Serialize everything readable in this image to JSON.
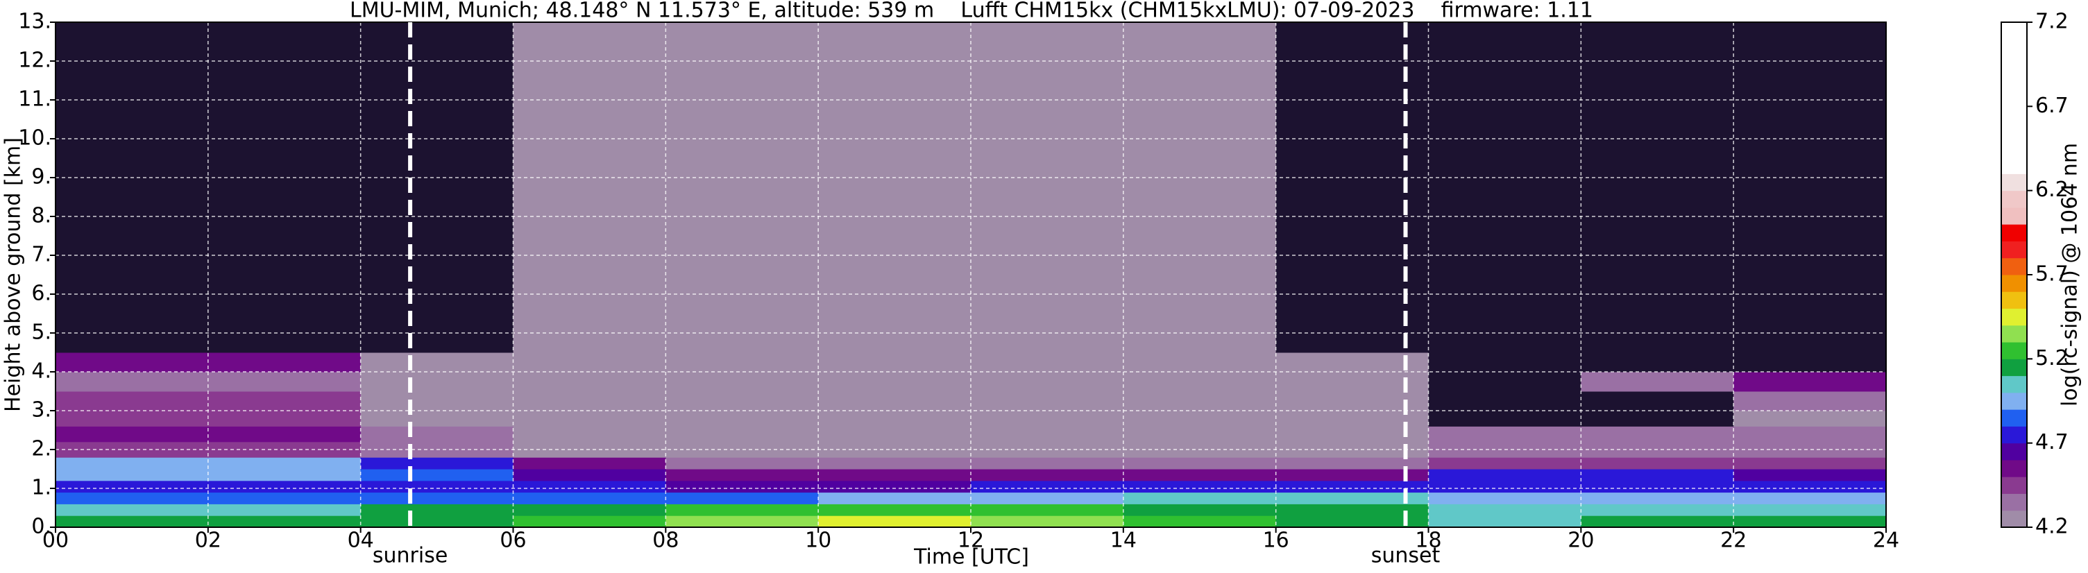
{
  "chart_data": {
    "type": "heatmap",
    "title": "LMU-MIM, Munich; 48.148° N 11.573° E, altitude: 539 m    Lufft CHM15kx (CHM15kxLMU): 07-09-2023    firmware: 1.11",
    "xlabel": "Time [UTC]",
    "ylabel": "Height above ground [km]",
    "colorbar_label": "log(rc-signal) @ 1064 nm",
    "xlim": [
      0,
      24
    ],
    "xticks": [
      {
        "value": 0,
        "label": "00"
      },
      {
        "value": 2,
        "label": "02"
      },
      {
        "value": 4,
        "label": "04"
      },
      {
        "value": 6,
        "label": "06"
      },
      {
        "value": 8,
        "label": "08"
      },
      {
        "value": 10,
        "label": "10"
      },
      {
        "value": 12,
        "label": "12"
      },
      {
        "value": 14,
        "label": "14"
      },
      {
        "value": 16,
        "label": "16"
      },
      {
        "value": 18,
        "label": "18"
      },
      {
        "value": 20,
        "label": "20"
      },
      {
        "value": 22,
        "label": "22"
      },
      {
        "value": 24,
        "label": "24"
      }
    ],
    "ylim": [
      0,
      13
    ],
    "yticks": [
      {
        "value": 0,
        "label": "0."
      },
      {
        "value": 1,
        "label": "1."
      },
      {
        "value": 2,
        "label": "2."
      },
      {
        "value": 3,
        "label": "3."
      },
      {
        "value": 4,
        "label": "4."
      },
      {
        "value": 5,
        "label": "5."
      },
      {
        "value": 6,
        "label": "6."
      },
      {
        "value": 7,
        "label": "7."
      },
      {
        "value": 8,
        "label": "8."
      },
      {
        "value": 9,
        "label": "9."
      },
      {
        "value": 10,
        "label": "10."
      },
      {
        "value": 11,
        "label": "11."
      },
      {
        "value": 12,
        "label": "12."
      },
      {
        "value": 13,
        "label": "13."
      }
    ],
    "grid": true,
    "clim": [
      4.2,
      7.2
    ],
    "cticks": [
      4.2,
      4.7,
      5.2,
      5.7,
      6.2,
      6.7,
      7.2
    ],
    "color_step": 0.1,
    "under_color": "#1c1230",
    "colors": [
      "#a08ca8",
      "#9a70a4",
      "#8a3a90",
      "#700a88",
      "#5000a0",
      "#2a18d8",
      "#2060f0",
      "#80b0f0",
      "#60c8c8",
      "#10a040",
      "#30c030",
      "#90e050",
      "#e0f030",
      "#f0c010",
      "#f09000",
      "#f06010",
      "#f02020",
      "#f00000",
      "#f0c0c0",
      "#f0c8c8",
      "#f0e0e0",
      "#ffffff",
      "#ffffff",
      "#ffffff",
      "#ffffff",
      "#ffffff",
      "#ffffff",
      "#ffffff",
      "#ffffff",
      "#ffffff"
    ],
    "x_edges": [
      0,
      2,
      4,
      6,
      8,
      10,
      12,
      14,
      16,
      18,
      20,
      22,
      24
    ],
    "y_edges": [
      0,
      0.3,
      0.6,
      0.9,
      1.2,
      1.5,
      1.8,
      2.2,
      2.6,
      3,
      3.5,
      4,
      4.5,
      5,
      7,
      9,
      13
    ],
    "z": [
      [
        5.1,
        5.1,
        5.1,
        5.2,
        5.35,
        5.45,
        5.3,
        5.2,
        5.1,
        5.0,
        5.1,
        5.1
      ],
      [
        5.0,
        5.0,
        5.1,
        5.1,
        5.2,
        5.25,
        5.2,
        5.1,
        5.1,
        5.0,
        5.0,
        5.0
      ],
      [
        4.8,
        4.8,
        4.8,
        4.8,
        4.85,
        4.9,
        4.95,
        5.0,
        5.0,
        4.9,
        4.9,
        4.9
      ],
      [
        4.7,
        4.7,
        4.7,
        4.7,
        4.6,
        4.65,
        4.7,
        4.7,
        4.7,
        4.75,
        4.75,
        4.75
      ],
      [
        4.9,
        4.9,
        4.8,
        4.6,
        4.5,
        4.5,
        4.5,
        4.5,
        4.55,
        4.7,
        4.7,
        4.6
      ],
      [
        4.95,
        4.9,
        4.7,
        4.5,
        4.3,
        4.3,
        4.3,
        4.3,
        4.3,
        4.4,
        4.4,
        4.4
      ],
      [
        4.4,
        4.4,
        4.3,
        4.25,
        4.2,
        4.2,
        4.2,
        4.2,
        4.2,
        4.35,
        4.35,
        4.3
      ],
      [
        4.5,
        4.5,
        4.3,
        4.2,
        4.2,
        4.2,
        4.2,
        4.2,
        4.2,
        4.3,
        4.3,
        4.3
      ],
      [
        4.45,
        4.4,
        4.2,
        4.2,
        4.2,
        4.2,
        4.2,
        4.2,
        4.2,
        4.1,
        4.1,
        4.25
      ],
      [
        4.4,
        4.4,
        4.2,
        4.2,
        4.2,
        4.2,
        4.2,
        4.2,
        4.2,
        4.1,
        4.1,
        4.3
      ],
      [
        4.3,
        4.3,
        4.2,
        4.2,
        4.2,
        4.2,
        4.2,
        4.2,
        4.2,
        4.1,
        4.3,
        4.55
      ],
      [
        4.5,
        4.5,
        4.2,
        4.2,
        4.2,
        4.2,
        4.2,
        4.2,
        4.2,
        4.1,
        4.1,
        4.1
      ],
      [
        4.0,
        4.0,
        4.1,
        4.2,
        4.2,
        4.2,
        4.2,
        4.2,
        4.1,
        4.0,
        4.0,
        4.0
      ],
      [
        4.0,
        4.0,
        4.1,
        4.2,
        4.2,
        4.2,
        4.2,
        4.2,
        4.1,
        4.0,
        4.0,
        4.0
      ],
      [
        4.0,
        4.0,
        4.1,
        4.2,
        4.2,
        4.2,
        4.2,
        4.2,
        4.1,
        4.0,
        4.0,
        4.0
      ],
      [
        4.0,
        4.0,
        4.1,
        4.2,
        4.2,
        4.2,
        4.2,
        4.2,
        4.1,
        4.0,
        4.0,
        4.0
      ]
    ],
    "annotations": [
      {
        "text": "sunrise",
        "x": 4.65
      },
      {
        "text": "sunset",
        "x": 17.7
      }
    ]
  }
}
